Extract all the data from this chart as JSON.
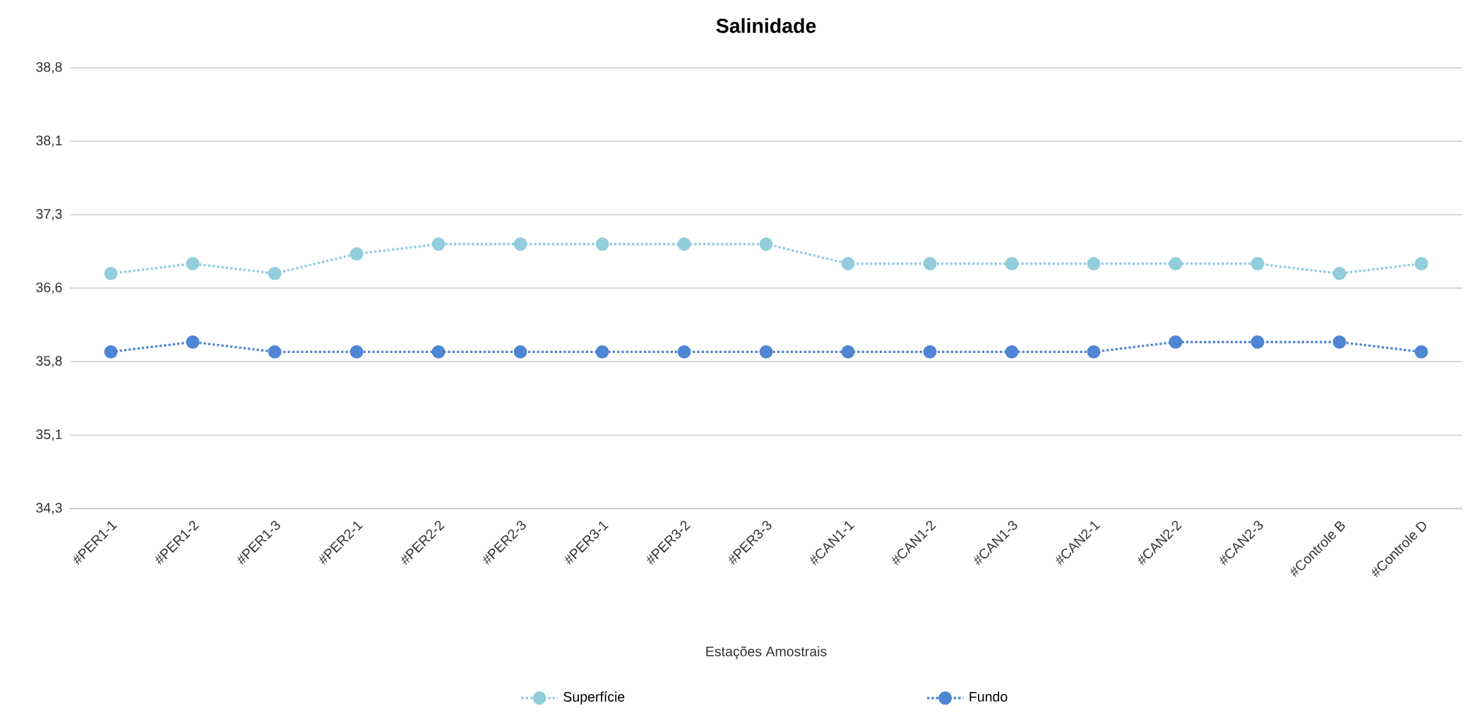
{
  "chart_data": {
    "type": "line",
    "title": "Salinidade",
    "xlabel": "Estações Amostrais",
    "categories": [
      "#PER1-1",
      "#PER1-2",
      "#PER1-3",
      "#PER2-1",
      "#PER2-2",
      "#PER2-3",
      "#PER3-1",
      "#PER3-2",
      "#PER3-3",
      "#CAN1-1",
      "#CAN1-2",
      "#CAN1-3",
      "#CAN2-1",
      "#CAN2-2",
      "#CAN2-3",
      "#Controle B",
      "#Controle D"
    ],
    "series": [
      {
        "name": "Superfície",
        "color": "#92cddc",
        "values": [
          36.7,
          36.8,
          36.7,
          36.9,
          37.0,
          37.0,
          37.0,
          37.0,
          37.0,
          36.8,
          36.8,
          36.8,
          36.8,
          36.8,
          36.8,
          36.7,
          36.8
        ]
      },
      {
        "name": "Fundo",
        "color": "#4f86d4",
        "values": [
          35.9,
          36.0,
          35.9,
          35.9,
          35.9,
          35.9,
          35.9,
          35.9,
          35.9,
          35.9,
          35.9,
          35.9,
          35.9,
          36.0,
          36.0,
          36.0,
          35.9
        ]
      }
    ],
    "ylim": [
      34.3,
      38.8
    ],
    "yticks": [
      {
        "value": 34.3,
        "label": "34,3"
      },
      {
        "value": 35.05,
        "label": "35,1"
      },
      {
        "value": 35.8,
        "label": "35,8"
      },
      {
        "value": 36.55,
        "label": "36,6"
      },
      {
        "value": 37.3,
        "label": "37,3"
      },
      {
        "value": 38.05,
        "label": "38,1"
      },
      {
        "value": 38.8,
        "label": "38,8"
      }
    ],
    "grid": "y",
    "legend": "bottom",
    "marker": "circle",
    "line_style": "dotted"
  }
}
